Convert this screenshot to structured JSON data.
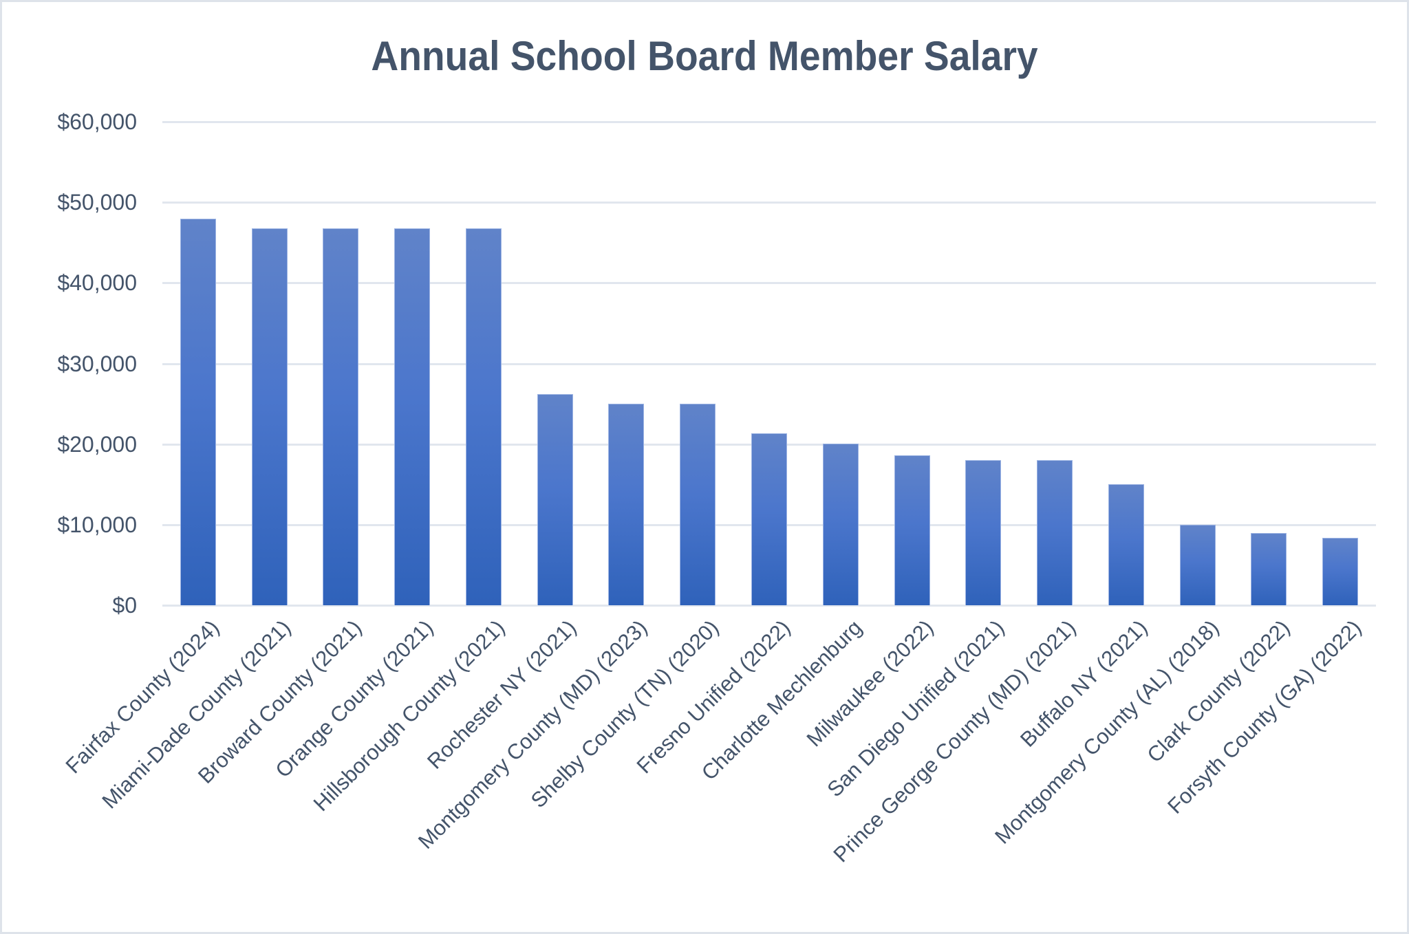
{
  "chart_data": {
    "type": "bar",
    "title": "Annual School Board Member Salary",
    "xlabel": "",
    "ylabel": "",
    "ylim": [
      0,
      60000
    ],
    "yticks": [
      0,
      10000,
      20000,
      30000,
      40000,
      50000,
      60000
    ],
    "ytick_labels": [
      "$0",
      "$10,000",
      "$20,000",
      "$30,000",
      "$40,000",
      "$50,000",
      "$60,000"
    ],
    "grid": true,
    "legend": null,
    "categories": [
      "Fairfax County (2024)",
      "Miami-Dade County (2021)",
      "Broward County (2021)",
      "Orange County (2021)",
      "Hillsborough County (2021)",
      "Rochester NY (2021)",
      "Montgomery County (MD) (2023)",
      "Shelby County (TN) (2020)",
      "Fresno Unified (2022)",
      "Charlotte Mechlenburg",
      "Milwaukee (2022)",
      "San Diego Unified (2021)",
      "Prince George County (MD) (2021)",
      "Buffalo NY (2021)",
      "Montgomery County (AL) (2018)",
      "Clark County (2022)",
      "Forsyth County (GA) (2022)"
    ],
    "values": [
      48000,
      46800,
      46800,
      46800,
      46800,
      26200,
      25000,
      25000,
      21300,
      20100,
      18600,
      18000,
      18000,
      15000,
      10000,
      9000,
      8400
    ],
    "bar_color_top": "#6083C9",
    "bar_color_bottom": "#2F62BA"
  }
}
